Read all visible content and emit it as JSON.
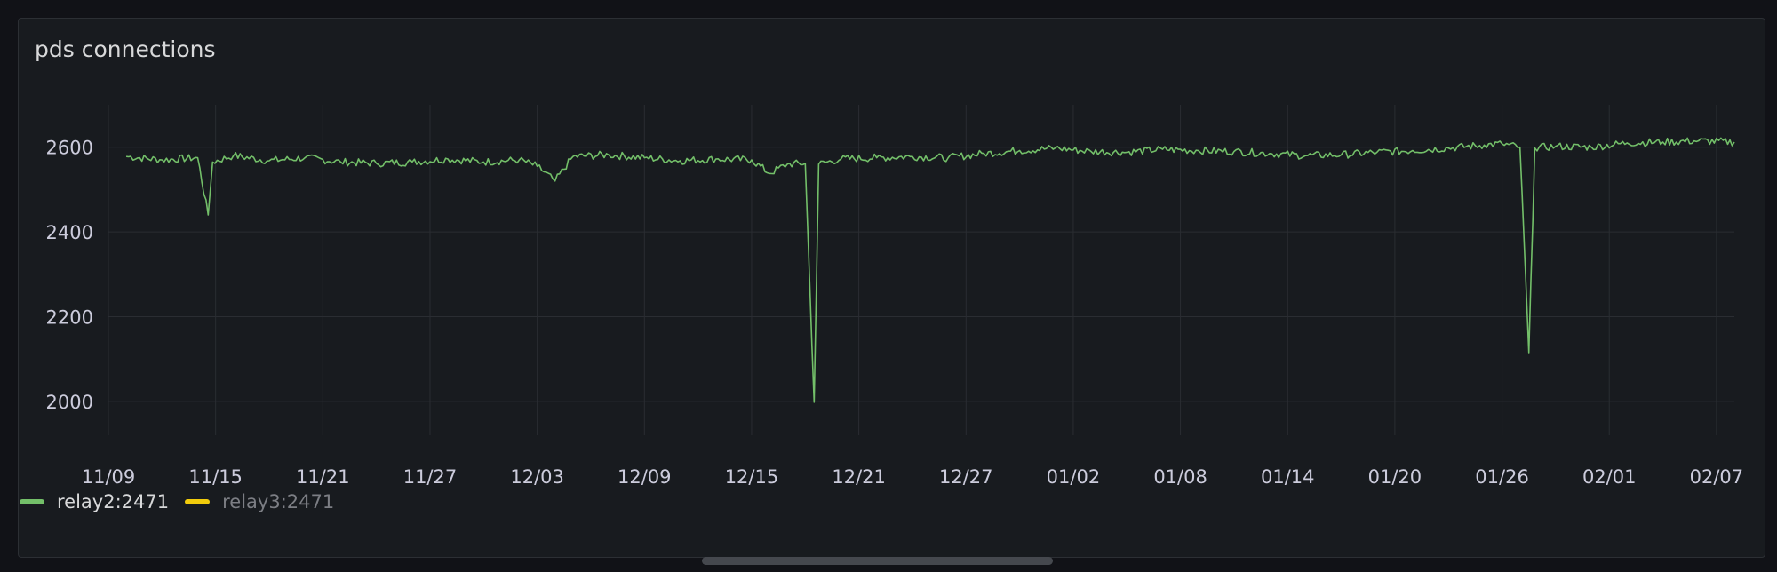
{
  "panel": {
    "title": "pds connections"
  },
  "colors": {
    "relay2": "#73bf69",
    "relay3": "#f2cc0c",
    "grid": "#2a2d32",
    "text": "#ccccdc"
  },
  "legend": [
    {
      "label": "relay2:2471",
      "color": "#73bf69",
      "state": "active"
    },
    {
      "label": "relay3:2471",
      "color": "#f2cc0c",
      "state": "muted"
    }
  ],
  "chart_data": {
    "type": "line",
    "x_domain": [
      "2023-11-09",
      "2024-02-08"
    ],
    "x_ticks": [
      "11/09",
      "11/15",
      "11/21",
      "11/27",
      "12/03",
      "12/09",
      "12/15",
      "12/21",
      "12/27",
      "01/02",
      "01/08",
      "01/14",
      "01/20",
      "01/26",
      "02/01",
      "02/07"
    ],
    "y_ticks": [
      2000,
      2200,
      2400,
      2600
    ],
    "ylim": [
      1920,
      2700
    ],
    "grid": true,
    "legend_position": "bottom-left",
    "series": [
      {
        "name": "relay2:2471",
        "color": "#73bf69",
        "points": [
          [
            "2023-11-10",
            2578
          ],
          [
            "2023-11-12",
            2570
          ],
          [
            "2023-11-14",
            2575
          ],
          [
            "2023-11-14T14:00",
            2440
          ],
          [
            "2023-11-14T20:00",
            2565
          ],
          [
            "2023-11-16",
            2580
          ],
          [
            "2023-11-18",
            2568
          ],
          [
            "2023-11-20",
            2575
          ],
          [
            "2023-11-22",
            2565
          ],
          [
            "2023-11-24",
            2562
          ],
          [
            "2023-11-26",
            2565
          ],
          [
            "2023-11-28",
            2572
          ],
          [
            "2023-11-30",
            2565
          ],
          [
            "2023-12-02",
            2570
          ],
          [
            "2023-12-03",
            2555
          ],
          [
            "2023-12-04",
            2520
          ],
          [
            "2023-12-05",
            2578
          ],
          [
            "2023-12-07",
            2582
          ],
          [
            "2023-12-09",
            2575
          ],
          [
            "2023-12-11",
            2568
          ],
          [
            "2023-12-13",
            2572
          ],
          [
            "2023-12-15",
            2570
          ],
          [
            "2023-12-16",
            2538
          ],
          [
            "2023-12-17",
            2560
          ],
          [
            "2023-12-18",
            2562
          ],
          [
            "2023-12-18T12:00",
            1998
          ],
          [
            "2023-12-18T18:00",
            2560
          ],
          [
            "2023-12-20",
            2572
          ],
          [
            "2023-12-22",
            2575
          ],
          [
            "2023-12-24",
            2578
          ],
          [
            "2023-12-26",
            2575
          ],
          [
            "2023-12-28",
            2585
          ],
          [
            "2023-12-30",
            2592
          ],
          [
            "2024-01-01",
            2598
          ],
          [
            "2024-01-03",
            2590
          ],
          [
            "2024-01-05",
            2588
          ],
          [
            "2024-01-07",
            2595
          ],
          [
            "2024-01-09",
            2592
          ],
          [
            "2024-01-11",
            2590
          ],
          [
            "2024-01-13",
            2585
          ],
          [
            "2024-01-15",
            2580
          ],
          [
            "2024-01-17",
            2582
          ],
          [
            "2024-01-19",
            2588
          ],
          [
            "2024-01-21",
            2592
          ],
          [
            "2024-01-23",
            2598
          ],
          [
            "2024-01-25",
            2605
          ],
          [
            "2024-01-26",
            2608
          ],
          [
            "2024-01-27",
            2600
          ],
          [
            "2024-01-27T12:00",
            2115
          ],
          [
            "2024-01-27T20:00",
            2598
          ],
          [
            "2024-01-29",
            2602
          ],
          [
            "2024-01-31",
            2600
          ],
          [
            "2024-02-02",
            2610
          ],
          [
            "2024-02-04",
            2612
          ],
          [
            "2024-02-06",
            2615
          ],
          [
            "2024-02-08",
            2612
          ]
        ]
      }
    ]
  }
}
